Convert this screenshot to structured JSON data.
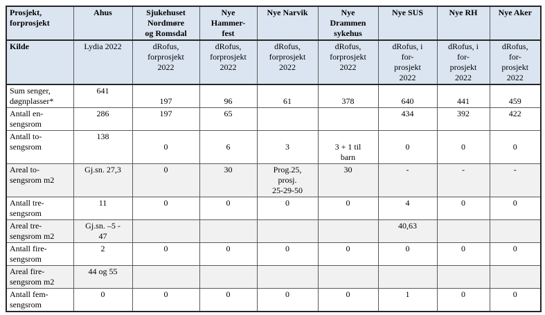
{
  "colors": {
    "header_bg": "#dbe5f1",
    "shaded_bg": "#f1f1f1",
    "border": "#595959",
    "outer_border": "#262626",
    "text": "#000000"
  },
  "table": {
    "corner": [
      "Prosjekt,",
      "forprosjekt"
    ],
    "col_ids": [
      "ahus",
      "sjukehuset-nordmore-og-romsdal",
      "nye-hammerfest",
      "nye-narvik",
      "nye-drammen-sykehus",
      "nye-sus",
      "nye-rh",
      "nye-aker"
    ],
    "header": [
      [
        "Ahus"
      ],
      [
        "Sjukehuset",
        "Nordmøre",
        "og Romsdal"
      ],
      [
        "Nye",
        "Hammer-",
        "fest"
      ],
      [
        "Nye Narvik"
      ],
      [
        "Nye",
        "Drammen",
        "sykehus"
      ],
      [
        "Nye SUS"
      ],
      [
        "Nye RH"
      ],
      [
        "Nye Aker"
      ]
    ],
    "rows": [
      {
        "id": "kilde",
        "style": "header",
        "label": [
          "Kilde"
        ],
        "cells": [
          [
            "Lydia 2022"
          ],
          [
            "dRofus,",
            "forprosjekt",
            "2022"
          ],
          [
            "dRofus,",
            "forprosjekt",
            "2022"
          ],
          [
            "dRofus,",
            "forprosjekt",
            "2022"
          ],
          [
            "dRofus,",
            "forprosjekt",
            "2022"
          ],
          [
            "dRofus, i",
            "for-",
            "prosjekt",
            "2022"
          ],
          [
            "dRofus, i",
            "for-",
            "prosjekt",
            "2022"
          ],
          [
            "dRofus,",
            "for-",
            "prosjekt",
            "2022"
          ]
        ]
      },
      {
        "id": "sum-senger-dognplasser",
        "style": "plain",
        "label": [
          "Sum senger,",
          "døgnplasser*"
        ],
        "cells": [
          [
            "641"
          ],
          [
            "",
            "197"
          ],
          [
            "",
            "96"
          ],
          [
            "",
            "61"
          ],
          [
            "",
            "378"
          ],
          [
            "",
            "640"
          ],
          [
            "",
            "441"
          ],
          [
            "",
            "459"
          ]
        ]
      },
      {
        "id": "antall-en-sengsrom",
        "style": "plain",
        "label": [
          "Antall en-",
          "sengsrom"
        ],
        "cells": [
          [
            "286"
          ],
          [
            "197"
          ],
          [
            "65"
          ],
          [],
          [],
          [
            "434"
          ],
          [
            "392"
          ],
          [
            "422"
          ]
        ]
      },
      {
        "id": "antall-to-sengsrom",
        "style": "plain",
        "label": [
          "Antall to-",
          "sengsrom"
        ],
        "cells": [
          [
            "138"
          ],
          [
            "",
            "0"
          ],
          [
            "",
            "6"
          ],
          [
            "",
            "3"
          ],
          [
            "",
            "3 + 1 til",
            "barn"
          ],
          [
            "",
            "0"
          ],
          [
            "",
            "0"
          ],
          [
            "",
            "0"
          ]
        ]
      },
      {
        "id": "areal-to-sengsrom-m2",
        "style": "shaded",
        "label": [
          "Areal to-",
          "sengsrom m2"
        ],
        "cells": [
          [
            "Gj.sn. 27,3"
          ],
          [
            "0"
          ],
          [
            "30"
          ],
          [
            "Prog.25,",
            "prosj.",
            "25-29-50"
          ],
          [
            "30"
          ],
          [
            "-"
          ],
          [
            "-"
          ],
          [
            "-"
          ]
        ]
      },
      {
        "id": "antall-tre-sengsrom",
        "style": "plain",
        "label": [
          "Antall tre-",
          "sengsrom"
        ],
        "cells": [
          [
            "11"
          ],
          [
            "0"
          ],
          [
            "0"
          ],
          [
            "0"
          ],
          [
            "0"
          ],
          [
            "4"
          ],
          [
            "0"
          ],
          [
            "0"
          ]
        ]
      },
      {
        "id": "areal-tre-sengsrom-m2",
        "style": "shaded",
        "label": [
          "Areal tre-",
          "sengsrom m2"
        ],
        "cells": [
          [
            "Gj.sn. –5 -",
            "47"
          ],
          [],
          [],
          [],
          [],
          [
            "40,63"
          ],
          [],
          []
        ]
      },
      {
        "id": "antall-fire-sengsrom",
        "style": "plain",
        "label": [
          "Antall fire-",
          "sengsrom"
        ],
        "cells": [
          [
            "2"
          ],
          [
            "0"
          ],
          [
            "0"
          ],
          [
            "0"
          ],
          [
            "0"
          ],
          [
            "0"
          ],
          [
            "0"
          ],
          [
            "0"
          ]
        ]
      },
      {
        "id": "areal-fire-sengsrom-m2",
        "style": "shaded",
        "label": [
          "Areal fire-",
          "sengsrom m2"
        ],
        "cells": [
          [
            "44 og 55"
          ],
          [],
          [],
          [],
          [],
          [],
          [],
          []
        ]
      },
      {
        "id": "antall-fem-sengsrom",
        "style": "plain",
        "label": [
          "Antall fem-",
          "sengsrom"
        ],
        "cells": [
          [
            "0"
          ],
          [
            "0"
          ],
          [
            "0"
          ],
          [
            "0"
          ],
          [
            "0"
          ],
          [
            "1"
          ],
          [
            "0"
          ],
          [
            "0"
          ]
        ]
      }
    ]
  }
}
